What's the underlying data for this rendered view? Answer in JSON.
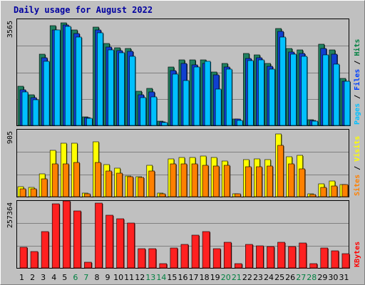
{
  "chart_data": {
    "type": "bar",
    "title": "Daily usage for August 2022",
    "categories": [
      "1",
      "2",
      "3",
      "4",
      "5",
      "6",
      "7",
      "8",
      "9",
      "10",
      "11",
      "12",
      "13",
      "14",
      "15",
      "16",
      "17",
      "18",
      "19",
      "20",
      "21",
      "22",
      "23",
      "24",
      "25",
      "26",
      "27",
      "28",
      "29",
      "30",
      "31"
    ],
    "weekend_days": [
      "6",
      "7",
      "13",
      "14",
      "20",
      "21",
      "27",
      "28"
    ],
    "panels": [
      {
        "id": "hits-files-pages",
        "ymax_label": "3565",
        "ymax": 3565,
        "right_labels": [
          {
            "text": "Pages",
            "color": "#00c0ff"
          },
          {
            "text": " / ",
            "color": "#000000"
          },
          {
            "text": "Files",
            "color": "#0040ff"
          },
          {
            "text": " / ",
            "color": "#000000"
          },
          {
            "text": "Hits",
            "color": "#008040"
          }
        ],
        "series": [
          {
            "name": "Hits",
            "color": "#208060",
            "values": [
              1330,
              1050,
              2430,
              3400,
              3500,
              3250,
              280,
              3350,
              2790,
              2640,
              2610,
              1160,
              1250,
              140,
              1990,
              2230,
              2220,
              2220,
              1830,
              2100,
              230,
              2440,
              2410,
              2120,
              3300,
              2620,
              2560,
              190,
              2770,
              2580,
              1600
            ]
          },
          {
            "name": "Files",
            "color": "#1040d0",
            "values": [
              1220,
              940,
              2300,
              3240,
              3420,
              3120,
              270,
              3250,
              2660,
              2550,
              2520,
              1050,
              1140,
              120,
              1870,
              2110,
              2070,
              2100,
              1710,
              1990,
              220,
              2270,
              2300,
              2010,
              3200,
              2500,
              2440,
              180,
              2620,
              2430,
              1500
            ]
          },
          {
            "name": "Pages",
            "color": "#00c0ff",
            "values": [
              1140,
              880,
              2180,
              3240,
              3380,
              3000,
              240,
              3160,
              2560,
              2480,
              2360,
              950,
              980,
              90,
              1740,
              1530,
              1990,
              2180,
              1240,
              1920,
              170,
              2200,
              2230,
              1920,
              3000,
              2420,
              2350,
              140,
              2390,
              2090,
              1500
            ]
          }
        ]
      },
      {
        "id": "visits-sites",
        "ymax_label": "905",
        "ymax": 905,
        "right_labels": [
          {
            "text": "Sites",
            "color": "#ff8000"
          },
          {
            "text": " / ",
            "color": "#000000"
          },
          {
            "text": "Visits",
            "color": "#ffff00"
          }
        ],
        "series": [
          {
            "name": "Visits",
            "color": "#ffff00",
            "values": [
              140,
              130,
              310,
              640,
              740,
              740,
              50,
              760,
              440,
              390,
              290,
              280,
              430,
              50,
              520,
              540,
              540,
              560,
              540,
              490,
              40,
              510,
              520,
              510,
              865,
              550,
              570,
              40,
              180,
              220,
              170
            ]
          },
          {
            "name": "Sites",
            "color": "#ff8000",
            "values": [
              110,
              110,
              250,
              450,
              450,
              470,
              40,
              470,
              350,
              320,
              280,
              270,
              350,
              40,
              450,
              450,
              450,
              430,
              420,
              430,
              40,
              410,
              410,
              420,
              710,
              450,
              380,
              30,
              130,
              150,
              170
            ]
          }
        ]
      },
      {
        "id": "kbytes",
        "ymax_label": "257364",
        "ymax": 257364,
        "right_labels": [
          {
            "text": "KBytes",
            "color": "#ff0000"
          }
        ],
        "series": [
          {
            "name": "KBytes",
            "color": "#ff2020",
            "values": [
              80700,
              64000,
              143000,
              251000,
              262000,
              223000,
              21000,
              254000,
              207000,
              194000,
              175000,
              76000,
              76000,
              16000,
              78000,
              92000,
              129000,
              142000,
              76000,
              100000,
              16000,
              93000,
              86000,
              85000,
              101000,
              83000,
              99000,
              16000,
              78000,
              66000,
              55000
            ]
          }
        ]
      }
    ]
  }
}
